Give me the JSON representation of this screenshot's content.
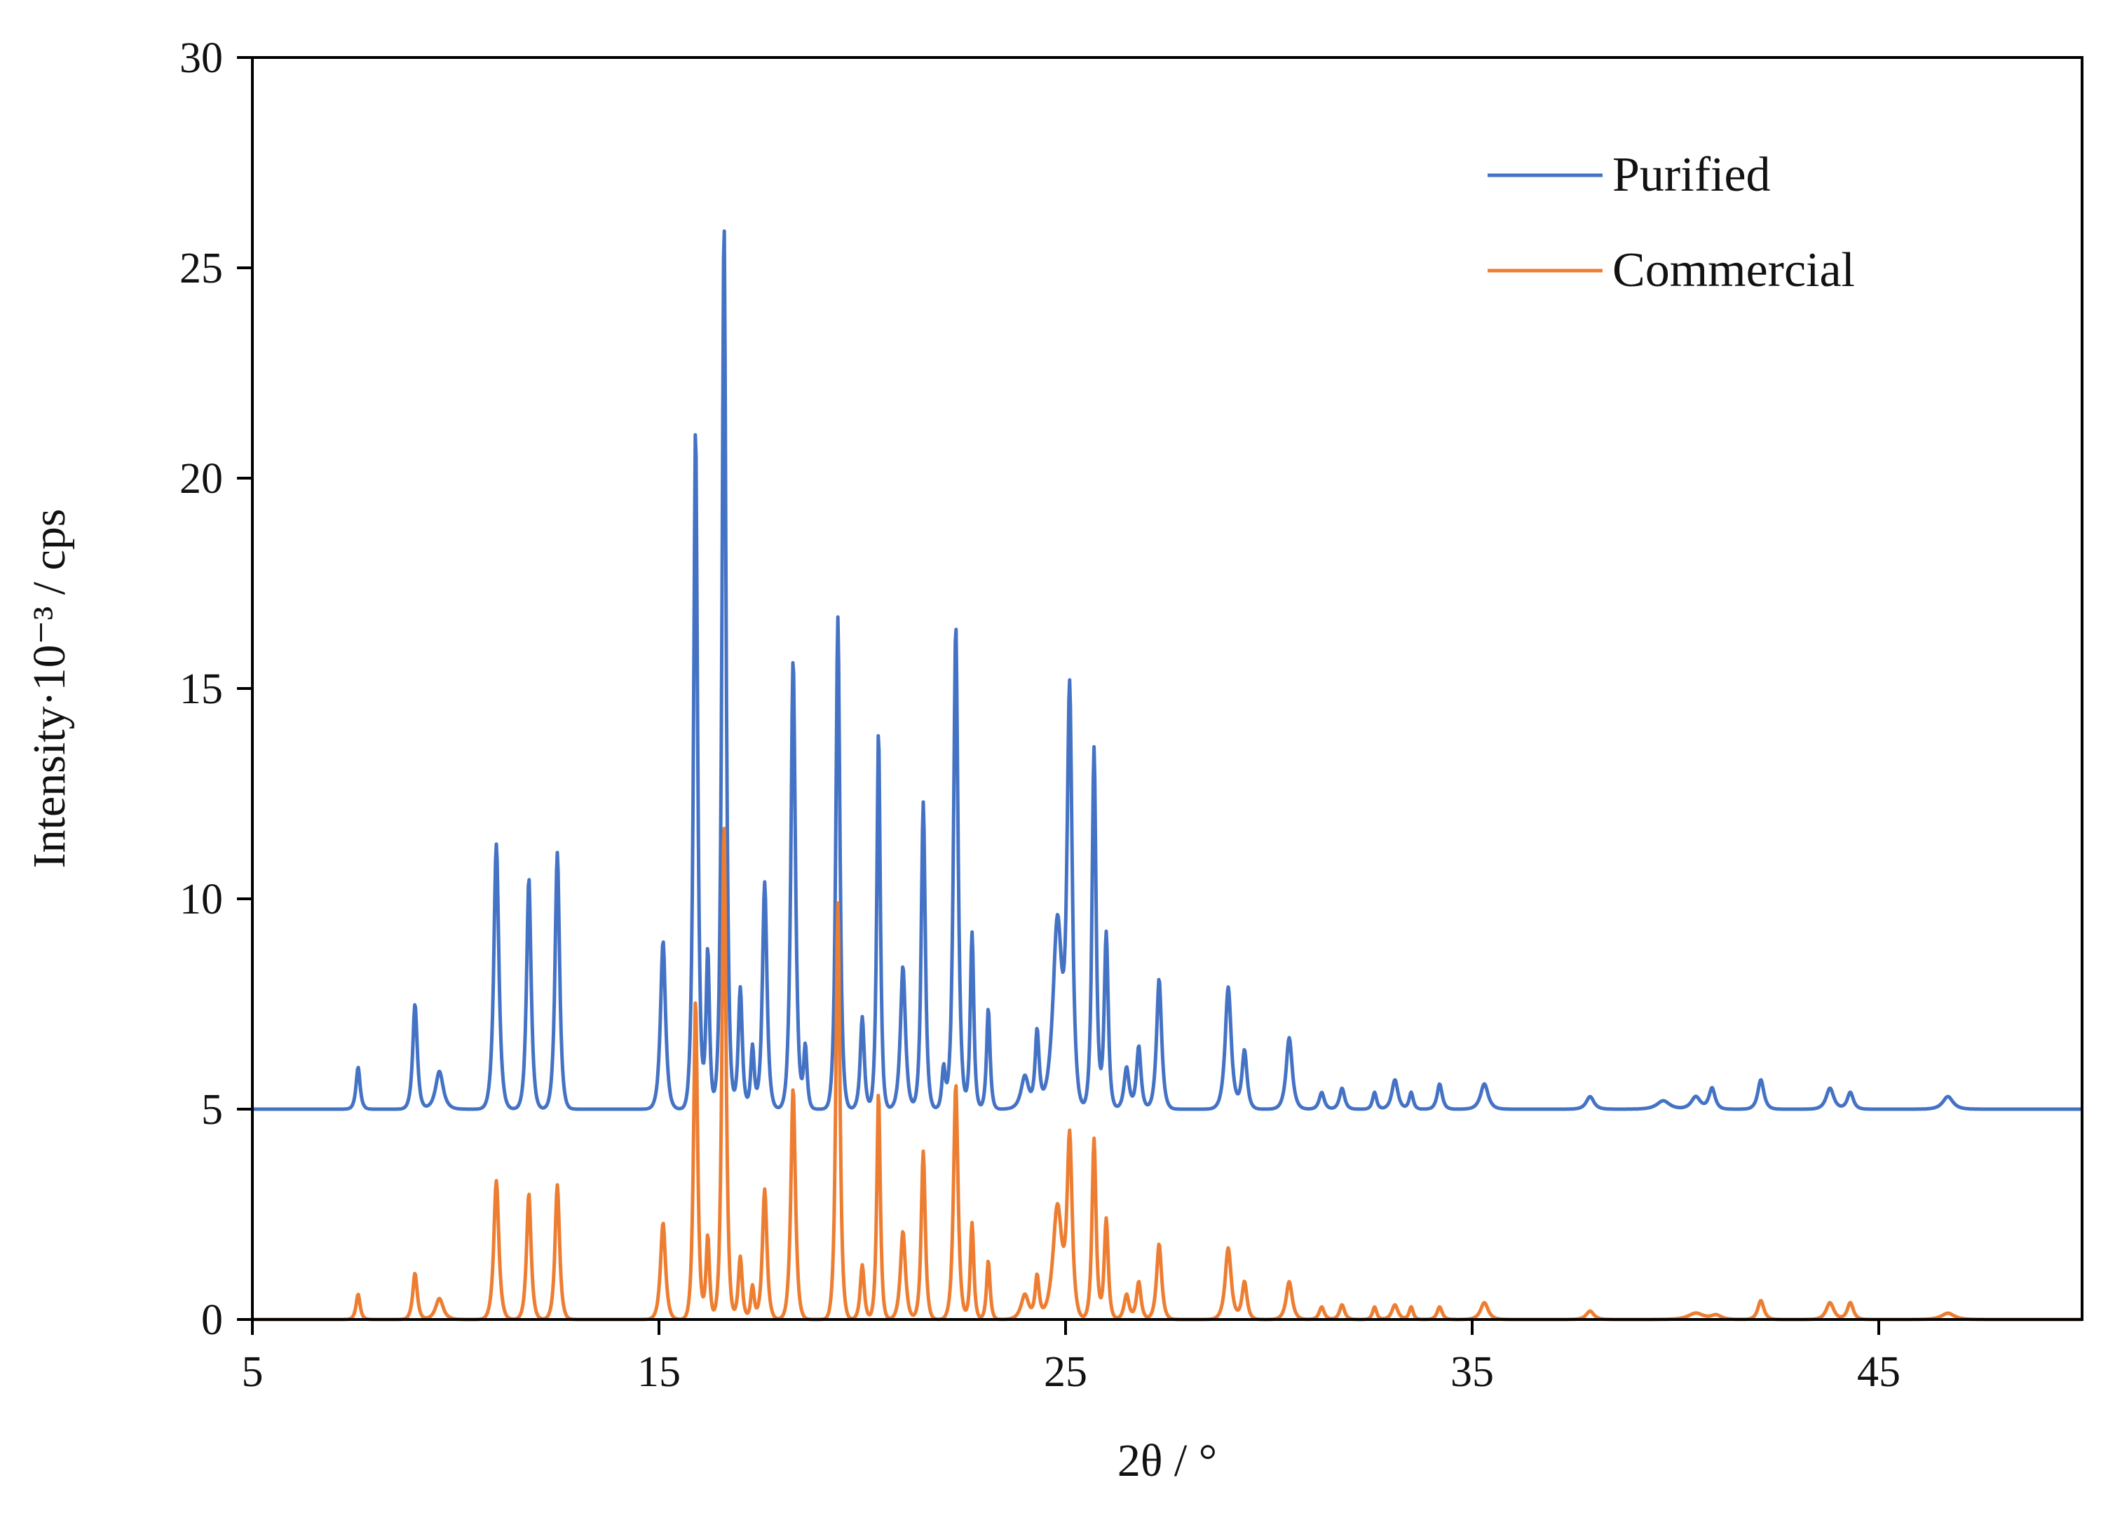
{
  "chart_data": {
    "type": "line",
    "title": "",
    "xlabel": "2θ / °",
    "ylabel": "Intensity·10⁻³ / cps",
    "xlim": [
      5,
      50
    ],
    "ylim": [
      0,
      30
    ],
    "x_ticks": [
      "5",
      "15",
      "25",
      "35",
      "45"
    ],
    "x_tick_values": [
      5,
      15,
      25,
      35,
      45
    ],
    "y_ticks": [
      "0",
      "5",
      "10",
      "15",
      "20",
      "25",
      "30"
    ],
    "y_tick_values": [
      0,
      5,
      10,
      15,
      20,
      25,
      30
    ],
    "grid": false,
    "legend_position": "top-right",
    "series": [
      {
        "name": "Purified",
        "color": "#4472C4",
        "baseline": 5.0,
        "peaks": [
          [
            7.6,
            1.0,
            0.08
          ],
          [
            9.0,
            2.5,
            0.09
          ],
          [
            9.6,
            0.9,
            0.15
          ],
          [
            11.0,
            6.3,
            0.1
          ],
          [
            11.8,
            5.5,
            0.09
          ],
          [
            12.5,
            6.1,
            0.09
          ],
          [
            15.1,
            4.0,
            0.1
          ],
          [
            15.9,
            16.2,
            0.08
          ],
          [
            16.2,
            3.8,
            0.07
          ],
          [
            16.6,
            21.1,
            0.08
          ],
          [
            17.0,
            2.9,
            0.08
          ],
          [
            17.3,
            1.5,
            0.07
          ],
          [
            17.6,
            5.4,
            0.09
          ],
          [
            18.3,
            10.7,
            0.09
          ],
          [
            18.6,
            1.5,
            0.07
          ],
          [
            19.4,
            11.7,
            0.08
          ],
          [
            20.0,
            2.2,
            0.08
          ],
          [
            20.4,
            9.0,
            0.07
          ],
          [
            21.0,
            3.4,
            0.1
          ],
          [
            21.5,
            7.3,
            0.08
          ],
          [
            22.0,
            1.0,
            0.07
          ],
          [
            22.3,
            11.5,
            0.09
          ],
          [
            22.7,
            4.2,
            0.07
          ],
          [
            23.1,
            2.4,
            0.07
          ],
          [
            24.0,
            0.8,
            0.15
          ],
          [
            24.3,
            1.8,
            0.08
          ],
          [
            24.8,
            4.5,
            0.18
          ],
          [
            25.1,
            9.7,
            0.1
          ],
          [
            25.7,
            8.6,
            0.08
          ],
          [
            26.0,
            4.2,
            0.08
          ],
          [
            26.5,
            1.0,
            0.1
          ],
          [
            26.8,
            1.5,
            0.09
          ],
          [
            27.3,
            3.1,
            0.1
          ],
          [
            29.0,
            2.9,
            0.12
          ],
          [
            29.4,
            1.4,
            0.1
          ],
          [
            30.5,
            1.7,
            0.12
          ],
          [
            31.3,
            0.4,
            0.1
          ],
          [
            31.8,
            0.5,
            0.1
          ],
          [
            32.6,
            0.4,
            0.08
          ],
          [
            33.1,
            0.7,
            0.12
          ],
          [
            33.5,
            0.4,
            0.08
          ],
          [
            34.2,
            0.6,
            0.1
          ],
          [
            35.3,
            0.6,
            0.15
          ],
          [
            37.9,
            0.3,
            0.15
          ],
          [
            39.7,
            0.2,
            0.25
          ],
          [
            40.5,
            0.3,
            0.18
          ],
          [
            40.9,
            0.5,
            0.12
          ],
          [
            42.1,
            0.7,
            0.12
          ],
          [
            43.8,
            0.5,
            0.15
          ],
          [
            44.3,
            0.4,
            0.12
          ],
          [
            46.7,
            0.3,
            0.2
          ]
        ]
      },
      {
        "name": "Commercial",
        "color": "#ED7D31",
        "baseline": 0.0,
        "peaks": [
          [
            7.6,
            0.6,
            0.08
          ],
          [
            9.0,
            1.1,
            0.09
          ],
          [
            9.6,
            0.5,
            0.15
          ],
          [
            11.0,
            3.3,
            0.1
          ],
          [
            11.8,
            3.0,
            0.09
          ],
          [
            12.5,
            3.2,
            0.09
          ],
          [
            15.1,
            2.3,
            0.1
          ],
          [
            15.9,
            7.6,
            0.08
          ],
          [
            16.2,
            2.0,
            0.07
          ],
          [
            16.6,
            11.8,
            0.08
          ],
          [
            17.0,
            1.5,
            0.08
          ],
          [
            17.3,
            0.8,
            0.07
          ],
          [
            17.6,
            3.1,
            0.09
          ],
          [
            18.3,
            5.5,
            0.09
          ],
          [
            19.4,
            9.9,
            0.08
          ],
          [
            20.0,
            1.3,
            0.08
          ],
          [
            20.4,
            5.4,
            0.07
          ],
          [
            21.0,
            2.1,
            0.1
          ],
          [
            21.5,
            4.0,
            0.08
          ],
          [
            22.3,
            5.6,
            0.09
          ],
          [
            22.7,
            2.3,
            0.07
          ],
          [
            23.1,
            1.4,
            0.07
          ],
          [
            24.0,
            0.6,
            0.15
          ],
          [
            24.3,
            1.0,
            0.08
          ],
          [
            24.8,
            2.7,
            0.18
          ],
          [
            25.1,
            4.2,
            0.1
          ],
          [
            25.7,
            4.3,
            0.08
          ],
          [
            26.0,
            2.4,
            0.08
          ],
          [
            26.5,
            0.6,
            0.1
          ],
          [
            26.8,
            0.9,
            0.09
          ],
          [
            27.3,
            1.8,
            0.1
          ],
          [
            29.0,
            1.7,
            0.12
          ],
          [
            29.4,
            0.9,
            0.1
          ],
          [
            30.5,
            0.9,
            0.12
          ],
          [
            31.3,
            0.3,
            0.1
          ],
          [
            31.8,
            0.35,
            0.1
          ],
          [
            32.6,
            0.3,
            0.08
          ],
          [
            33.1,
            0.35,
            0.12
          ],
          [
            33.5,
            0.3,
            0.08
          ],
          [
            34.2,
            0.3,
            0.1
          ],
          [
            35.3,
            0.4,
            0.15
          ],
          [
            37.9,
            0.2,
            0.15
          ],
          [
            40.5,
            0.15,
            0.3
          ],
          [
            41.0,
            0.1,
            0.2
          ],
          [
            42.1,
            0.45,
            0.12
          ],
          [
            43.8,
            0.4,
            0.15
          ],
          [
            44.3,
            0.4,
            0.12
          ],
          [
            46.7,
            0.15,
            0.25
          ]
        ]
      }
    ]
  }
}
